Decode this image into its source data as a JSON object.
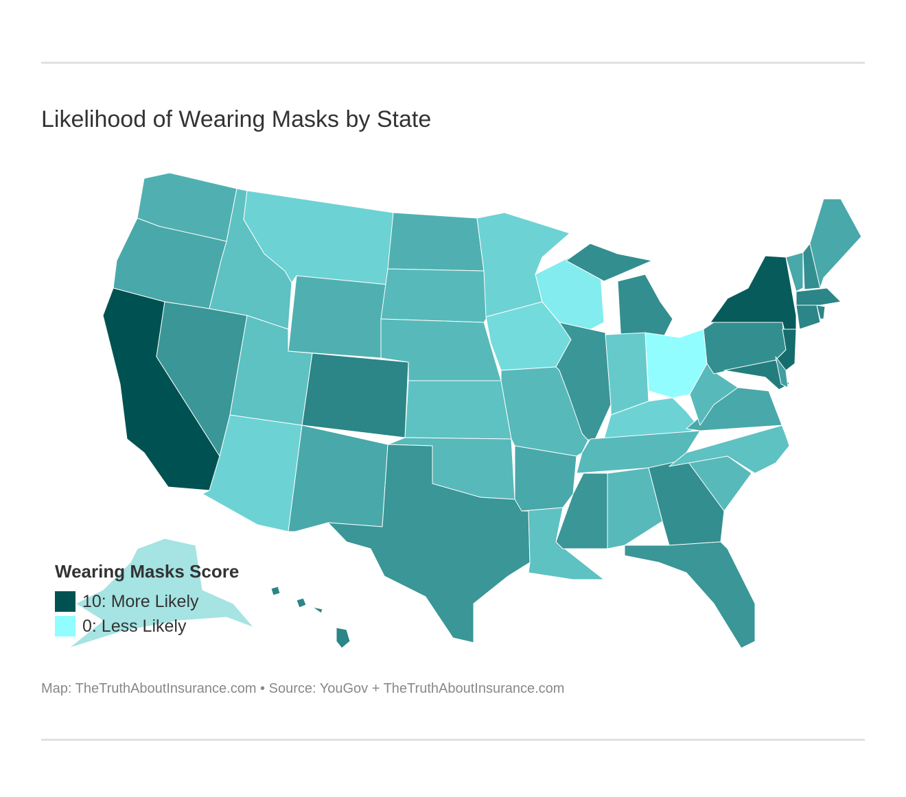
{
  "title": "Likelihood of Wearing Masks by State",
  "legend": {
    "title": "Wearing Masks Score",
    "items": [
      {
        "label": "10: More Likely",
        "color": "#005252"
      },
      {
        "label": "0: Less Likely",
        "color": "#91fdff"
      }
    ]
  },
  "no_data_color": "#a6e3e3",
  "footer": "Map: TheTruthAboutInsurance.com • Source: YouGov + TheTruthAboutInsurance.com",
  "chart_data": {
    "type": "choropleth",
    "scale": {
      "min": 0,
      "max": 10
    },
    "states": [
      {
        "id": "WA",
        "score": 4.5
      },
      {
        "id": "OR",
        "score": 5
      },
      {
        "id": "CA",
        "score": 10
      },
      {
        "id": "NV",
        "score": 6
      },
      {
        "id": "ID",
        "score": 3.5
      },
      {
        "id": "MT",
        "score": 2.5
      },
      {
        "id": "WY",
        "score": 4.5
      },
      {
        "id": "UT",
        "score": 3.5
      },
      {
        "id": "AZ",
        "score": 2.5
      },
      {
        "id": "CO",
        "score": 7
      },
      {
        "id": "NM",
        "score": 5
      },
      {
        "id": "ND",
        "score": 4.5
      },
      {
        "id": "SD",
        "score": 4
      },
      {
        "id": "NE",
        "score": 4
      },
      {
        "id": "KS",
        "score": 3.5
      },
      {
        "id": "OK",
        "score": 4
      },
      {
        "id": "TX",
        "score": 6
      },
      {
        "id": "MN",
        "score": 2.5
      },
      {
        "id": "IA",
        "score": 2
      },
      {
        "id": "MO",
        "score": 4
      },
      {
        "id": "AR",
        "score": 5
      },
      {
        "id": "LA",
        "score": 3.5
      },
      {
        "id": "WI",
        "score": 1
      },
      {
        "id": "IL",
        "score": 6
      },
      {
        "id": "MI",
        "score": 6.5
      },
      {
        "id": "IN",
        "score": 3
      },
      {
        "id": "OH",
        "score": 0
      },
      {
        "id": "KY",
        "score": 2.5
      },
      {
        "id": "TN",
        "score": 4
      },
      {
        "id": "MS",
        "score": 6
      },
      {
        "id": "AL",
        "score": 4
      },
      {
        "id": "GA",
        "score": 6.5
      },
      {
        "id": "FL",
        "score": 6
      },
      {
        "id": "SC",
        "score": 4
      },
      {
        "id": "NC",
        "score": 3.5
      },
      {
        "id": "VA",
        "score": 5
      },
      {
        "id": "WV",
        "score": 4
      },
      {
        "id": "PA",
        "score": 6.5
      },
      {
        "id": "NY",
        "score": 9.5
      },
      {
        "id": "NJ",
        "score": 8.5
      },
      {
        "id": "MD",
        "score": 7.5
      },
      {
        "id": "DE",
        "score": 5.5
      },
      {
        "id": "VT",
        "score": 5
      },
      {
        "id": "NH",
        "score": 6.5
      },
      {
        "id": "ME",
        "score": 5
      },
      {
        "id": "MA",
        "score": 7
      },
      {
        "id": "CT",
        "score": 7
      },
      {
        "id": "RI",
        "score": 7
      },
      {
        "id": "HI",
        "score": 7
      },
      {
        "id": "AK",
        "score": null
      }
    ]
  }
}
